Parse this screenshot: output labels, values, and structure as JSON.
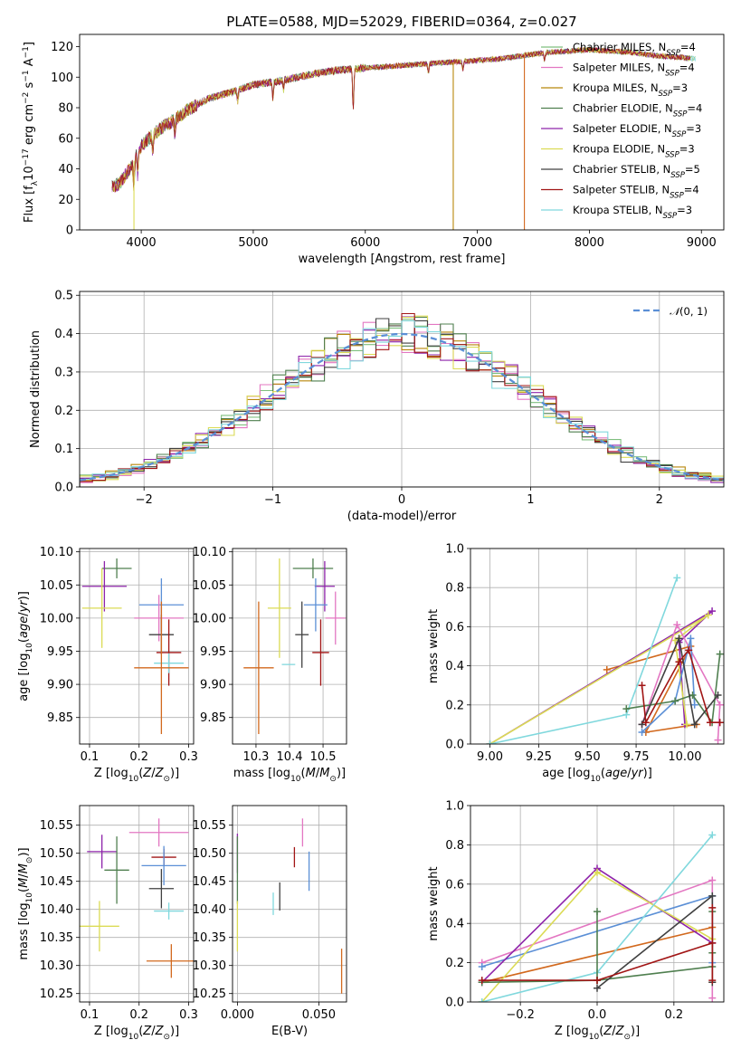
{
  "figure_title": "PLATE=0588, MJD=52029, FIBERID=0364, z=0.027",
  "colors": {
    "Chabrier MILES": "#7fbf7f",
    "Salpeter MILES": "#e377c2",
    "Kroupa MILES": "#b8860b",
    "Chabrier ELODIE": "#4f7f4f",
    "Salpeter ELODIE": "#8e24aa",
    "Kroupa ELODIE": "#dbdb55",
    "Chabrier STELIB": "#404040",
    "Salpeter STELIB": "#a11515",
    "Kroupa STELIB": "#80d8dd",
    "normal_curve": "#5b8fd6"
  },
  "chart_data": [
    {
      "id": "spectrum",
      "type": "line",
      "title": "PLATE=0588, MJD=52029, FIBERID=0364, z=0.027",
      "xlabel": "wavelength [Angstrom, rest frame]",
      "ylabel": "Flux [f_λ 10^-17 erg cm^-2 s^-1 A^-1]",
      "xlim": [
        3450,
        9200
      ],
      "ylim": [
        0,
        128
      ],
      "xticks": [
        4000,
        5000,
        6000,
        7000,
        8000,
        9000
      ],
      "yticks": [
        0,
        20,
        40,
        60,
        80,
        100,
        120
      ],
      "grid": false,
      "legend_position": "top-right",
      "legend": [
        {
          "label": "Chabrier MILES, N",
          "sub": "SSP",
          "value": "=4",
          "color": "#7fbf7f"
        },
        {
          "label": "Salpeter MILES, N",
          "sub": "SSP",
          "value": "=4",
          "color": "#e377c2"
        },
        {
          "label": "Kroupa MILES, N",
          "sub": "SSP",
          "value": "=3",
          "color": "#b8860b"
        },
        {
          "label": "Chabrier ELODIE, N",
          "sub": "SSP",
          "value": "=4",
          "color": "#4f7f4f"
        },
        {
          "label": "Salpeter ELODIE, N",
          "sub": "SSP",
          "value": "=3",
          "color": "#8e24aa"
        },
        {
          "label": "Kroupa ELODIE, N",
          "sub": "SSP",
          "value": "=3",
          "color": "#dbdb55"
        },
        {
          "label": "Chabrier STELIB, N",
          "sub": "SSP",
          "value": "=5",
          "color": "#404040"
        },
        {
          "label": "Salpeter STELIB, N",
          "sub": "SSP",
          "value": "=4",
          "color": "#a11515"
        },
        {
          "label": "Kroupa STELIB, N",
          "sub": "SSP",
          "value": "=3",
          "color": "#80d8dd"
        }
      ],
      "continuum": [
        [
          3740,
          28
        ],
        [
          3800,
          30
        ],
        [
          3900,
          40
        ],
        [
          4000,
          55
        ],
        [
          4100,
          62
        ],
        [
          4200,
          68
        ],
        [
          4300,
          72
        ],
        [
          4400,
          78
        ],
        [
          4500,
          82
        ],
        [
          4600,
          86
        ],
        [
          4800,
          90
        ],
        [
          5000,
          95
        ],
        [
          5200,
          97
        ],
        [
          5400,
          100
        ],
        [
          5600,
          103
        ],
        [
          5800,
          105
        ],
        [
          6000,
          106
        ],
        [
          6200,
          107
        ],
        [
          6400,
          108
        ],
        [
          6600,
          109
        ],
        [
          6800,
          110
        ],
        [
          7000,
          111
        ],
        [
          7200,
          112
        ],
        [
          7400,
          114
        ],
        [
          7600,
          116
        ],
        [
          7800,
          117
        ],
        [
          8000,
          118
        ],
        [
          8200,
          117
        ],
        [
          8400,
          116
        ],
        [
          8600,
          114
        ],
        [
          8800,
          113
        ],
        [
          8950,
          112
        ]
      ],
      "drops": [
        {
          "x": 3935,
          "y": 0,
          "color": "#dbdb55"
        },
        {
          "x": 6785,
          "y": 0,
          "color": "#b8860b"
        },
        {
          "x": 7420,
          "y": 0,
          "color": "#d2691e"
        }
      ]
    },
    {
      "id": "residual_hist",
      "type": "histogram",
      "xlabel": "(data-model)/error",
      "ylabel": "Normed distribution",
      "xlim": [
        -2.5,
        2.5
      ],
      "ylim": [
        0,
        0.51
      ],
      "xticks": [
        -2,
        -1,
        0,
        1,
        2
      ],
      "yticks": [
        0.0,
        0.1,
        0.2,
        0.3,
        0.4,
        0.5
      ],
      "grid": true,
      "legend_position": "top-right",
      "legend_label": "N(0, 1)",
      "bin_width": 0.1,
      "bin_start": -2.5
    },
    {
      "id": "age_vs_Z",
      "type": "scatter",
      "xlabel": "Z [log10(Z/Z⊙)]",
      "ylabel": "age  [log10(age/yr)]",
      "xlim": [
        0.08,
        0.31
      ],
      "ylim": [
        9.81,
        10.105
      ],
      "xticks": [
        0.1,
        0.2,
        0.3
      ],
      "yticks": [
        9.85,
        9.9,
        9.95,
        10.0,
        10.05,
        10.1
      ],
      "grid": true,
      "points": [
        {
          "x": 0.155,
          "y": 10.075,
          "xerr": 0.03,
          "yerr": 0.015,
          "c": "#4f7f4f"
        },
        {
          "x": 0.13,
          "y": 10.048,
          "xerr": 0.045,
          "yerr": 0.038,
          "c": "#8e24aa"
        },
        {
          "x": 0.125,
          "y": 10.015,
          "xerr": 0.04,
          "yerr": 0.06,
          "c": "#dbdb55"
        },
        {
          "x": 0.245,
          "y": 10.02,
          "xerr": 0.045,
          "yerr": 0.04,
          "c": "#5b8fd6"
        },
        {
          "x": 0.24,
          "y": 10.0,
          "xerr": 0.05,
          "yerr": 0.035,
          "c": "#e377c2"
        },
        {
          "x": 0.245,
          "y": 9.975,
          "xerr": 0.025,
          "yerr": 0.03,
          "c": "#404040"
        },
        {
          "x": 0.26,
          "y": 9.948,
          "xerr": 0.025,
          "yerr": 0.05,
          "c": "#a11515"
        },
        {
          "x": 0.26,
          "y": 9.932,
          "xerr": 0.03,
          "yerr": 0.015,
          "c": "#80d8dd"
        },
        {
          "x": 0.245,
          "y": 9.925,
          "xerr": 0.055,
          "yerr": 0.1,
          "c": "#d2691e"
        }
      ]
    },
    {
      "id": "age_vs_mass",
      "type": "scatter",
      "xlabel": "mass [log10(M/M⊙)]",
      "ylabel": "",
      "xlim": [
        10.23,
        10.57
      ],
      "ylim": [
        9.81,
        10.105
      ],
      "xticks": [
        10.3,
        10.4,
        10.5
      ],
      "yticks": [
        9.85,
        9.9,
        9.95,
        10.0,
        10.05,
        10.1
      ],
      "grid": true,
      "points": [
        {
          "x": 10.47,
          "y": 10.075,
          "xerr": 0.06,
          "yerr": 0.015,
          "c": "#4f7f4f"
        },
        {
          "x": 10.505,
          "y": 10.048,
          "xerr": 0.03,
          "yerr": 0.038,
          "c": "#8e24aa"
        },
        {
          "x": 10.37,
          "y": 10.015,
          "xerr": 0.035,
          "yerr": 0.075,
          "c": "#dbdb55"
        },
        {
          "x": 10.478,
          "y": 10.02,
          "xerr": 0.035,
          "yerr": 0.04,
          "c": "#5b8fd6"
        },
        {
          "x": 10.537,
          "y": 10.0,
          "xerr": 0.03,
          "yerr": 0.04,
          "c": "#e377c2"
        },
        {
          "x": 10.437,
          "y": 9.975,
          "xerr": 0.02,
          "yerr": 0.05,
          "c": "#404040"
        },
        {
          "x": 10.493,
          "y": 9.948,
          "xerr": 0.025,
          "yerr": 0.05,
          "c": "#a11515"
        },
        {
          "x": 10.397,
          "y": 9.93,
          "xerr": 0.02,
          "yerr": 0.0,
          "c": "#80d8dd"
        },
        {
          "x": 10.308,
          "y": 9.925,
          "xerr": 0.045,
          "yerr": 0.1,
          "c": "#d2691e"
        }
      ]
    },
    {
      "id": "weight_vs_age",
      "type": "line",
      "xlabel": "age  [log10(age/yr)]",
      "ylabel": "mass weight",
      "xlim": [
        8.9,
        10.2
      ],
      "ylim": [
        0,
        1.0
      ],
      "xticks": [
        9.0,
        9.25,
        9.5,
        9.75,
        10.0
      ],
      "yticks": [
        0.0,
        0.2,
        0.4,
        0.6,
        0.8,
        1.0
      ],
      "grid": true,
      "series": [
        {
          "c": "#d2691e",
          "pts": [
            [
              9.6,
              0.38
            ],
            [
              10.03,
              0.5
            ],
            [
              9.8,
              0.06
            ],
            [
              10.06,
              0.1
            ]
          ]
        },
        {
          "c": "#8e24aa",
          "pts": [
            [
              9.0,
              0.0
            ],
            [
              10.14,
              0.68
            ],
            [
              9.97,
              0.52
            ],
            [
              10.0,
              0.1
            ]
          ]
        },
        {
          "c": "#dbdb55",
          "pts": [
            [
              9.0,
              0.0
            ],
            [
              10.12,
              0.66
            ],
            [
              9.95,
              0.53
            ],
            [
              10.01,
              0.1
            ]
          ]
        },
        {
          "c": "#e377c2",
          "pts": [
            [
              9.78,
              0.1
            ],
            [
              9.96,
              0.61
            ],
            [
              10.18,
              0.2
            ],
            [
              10.17,
              0.02
            ]
          ]
        },
        {
          "c": "#5b8fd6",
          "pts": [
            [
              9.78,
              0.06
            ],
            [
              9.95,
              0.22
            ],
            [
              10.03,
              0.54
            ],
            [
              10.05,
              0.2
            ]
          ]
        },
        {
          "c": "#80d8dd",
          "pts": [
            [
              9.0,
              0.0
            ],
            [
              9.7,
              0.15
            ],
            [
              9.96,
              0.85
            ]
          ]
        },
        {
          "c": "#4f7f4f",
          "pts": [
            [
              9.7,
              0.18
            ],
            [
              9.95,
              0.22
            ],
            [
              10.04,
              0.25
            ],
            [
              10.14,
              0.11
            ],
            [
              10.18,
              0.46
            ]
          ]
        },
        {
          "c": "#404040",
          "pts": [
            [
              9.78,
              0.1
            ],
            [
              9.97,
              0.54
            ],
            [
              10.05,
              0.1
            ],
            [
              10.17,
              0.25
            ]
          ]
        },
        {
          "c": "#a11515",
          "pts": [
            [
              9.78,
              0.3
            ],
            [
              9.8,
              0.11
            ],
            [
              9.97,
              0.42
            ],
            [
              10.02,
              0.48
            ],
            [
              10.13,
              0.11
            ],
            [
              10.18,
              0.11
            ]
          ]
        }
      ]
    },
    {
      "id": "mass_vs_Z",
      "type": "scatter",
      "xlabel": "Z [log10(Z/Z⊙)]",
      "ylabel": "mass [log10(M/M⊙)]",
      "xlim": [
        0.08,
        0.31
      ],
      "ylim": [
        10.235,
        10.585
      ],
      "xticks": [
        0.1,
        0.2,
        0.3
      ],
      "yticks": [
        10.25,
        10.3,
        10.35,
        10.4,
        10.45,
        10.5,
        10.55
      ],
      "grid": true,
      "points": [
        {
          "x": 0.24,
          "y": 10.537,
          "xerr": 0.06,
          "yerr": 0.025,
          "c": "#e377c2"
        },
        {
          "x": 0.125,
          "y": 10.503,
          "xerr": 0.03,
          "yerr": 0.03,
          "c": "#8e24aa"
        },
        {
          "x": 0.25,
          "y": 10.493,
          "xerr": 0.025,
          "yerr": 0.015,
          "c": "#a11515"
        },
        {
          "x": 0.25,
          "y": 10.478,
          "xerr": 0.045,
          "yerr": 0.035,
          "c": "#5b8fd6"
        },
        {
          "x": 0.155,
          "y": 10.47,
          "xerr": 0.025,
          "yerr": 0.06,
          "c": "#4f7f4f"
        },
        {
          "x": 0.245,
          "y": 10.437,
          "xerr": 0.025,
          "yerr": 0.035,
          "c": "#404040"
        },
        {
          "x": 0.26,
          "y": 10.397,
          "xerr": 0.03,
          "yerr": 0.015,
          "c": "#80d8dd"
        },
        {
          "x": 0.12,
          "y": 10.37,
          "xerr": 0.04,
          "yerr": 0.045,
          "c": "#dbdb55"
        },
        {
          "x": 0.265,
          "y": 10.308,
          "xerr": 0.05,
          "yerr": 0.03,
          "c": "#d2691e"
        }
      ]
    },
    {
      "id": "mass_vs_ebv",
      "type": "scatter",
      "xlabel": "E(B-V)",
      "ylabel": "",
      "xlim": [
        -0.003,
        0.067
      ],
      "ylim": [
        10.235,
        10.585
      ],
      "xticks": [
        0.0,
        0.05
      ],
      "xticklabels": [
        "0.000",
        "0.050"
      ],
      "yticks": [
        10.25,
        10.3,
        10.35,
        10.4,
        10.45,
        10.5,
        10.55
      ],
      "grid": true,
      "points": [
        {
          "x": 0.0,
          "y": 10.5,
          "xerr": 0,
          "yerr": 0.035,
          "c": "#8e24aa"
        },
        {
          "x": 0.0,
          "y": 10.47,
          "xerr": 0,
          "yerr": 0.06,
          "c": "#4f7f4f"
        },
        {
          "x": 0.0,
          "y": 10.37,
          "xerr": 0,
          "yerr": 0.045,
          "c": "#dbdb55"
        },
        {
          "x": 0.022,
          "y": 10.41,
          "xerr": 0,
          "yerr": 0.02,
          "c": "#80d8dd"
        },
        {
          "x": 0.026,
          "y": 10.423,
          "xerr": 0,
          "yerr": 0.025,
          "c": "#404040"
        },
        {
          "x": 0.035,
          "y": 10.493,
          "xerr": 0,
          "yerr": 0.018,
          "c": "#a11515"
        },
        {
          "x": 0.04,
          "y": 10.537,
          "xerr": 0,
          "yerr": 0.025,
          "c": "#e377c2"
        },
        {
          "x": 0.044,
          "y": 10.468,
          "xerr": 0,
          "yerr": 0.035,
          "c": "#5b8fd6"
        },
        {
          "x": 0.064,
          "y": 10.29,
          "xerr": 0,
          "yerr": 0.04,
          "c": "#d2691e"
        }
      ]
    },
    {
      "id": "weight_vs_Z",
      "type": "line",
      "xlabel": "Z [log10(Z/Z⊙)]",
      "ylabel": "mass weight",
      "xlim": [
        -0.33,
        0.33
      ],
      "ylim": [
        0,
        1.0
      ],
      "xticks": [
        -0.2,
        0.0,
        0.2
      ],
      "yticks": [
        0.0,
        0.2,
        0.4,
        0.6,
        0.8,
        1.0
      ],
      "grid": true,
      "series": [
        {
          "c": "#e377c2",
          "pts": [
            [
              -0.3,
              0.2
            ],
            [
              0.3,
              0.62
            ],
            [
              0.3,
              0.02
            ]
          ]
        },
        {
          "c": "#5b8fd6",
          "pts": [
            [
              -0.3,
              0.18
            ],
            [
              0.3,
              0.54
            ],
            [
              0.3,
              0.2
            ]
          ]
        },
        {
          "c": "#d2691e",
          "pts": [
            [
              -0.3,
              0.1
            ],
            [
              0.3,
              0.38
            ],
            [
              0.3,
              0.1
            ]
          ]
        },
        {
          "c": "#8e24aa",
          "pts": [
            [
              -0.3,
              0.1
            ],
            [
              0.0,
              0.68
            ],
            [
              0.3,
              0.3
            ]
          ]
        },
        {
          "c": "#dbdb55",
          "pts": [
            [
              -0.3,
              0.0
            ],
            [
              0.0,
              0.66
            ],
            [
              0.3,
              0.32
            ]
          ]
        },
        {
          "c": "#80d8dd",
          "pts": [
            [
              -0.3,
              0.0
            ],
            [
              0.0,
              0.15
            ],
            [
              0.3,
              0.85
            ]
          ]
        },
        {
          "c": "#4f7f4f",
          "pts": [
            [
              -0.3,
              0.1
            ],
            [
              0.0,
              0.11
            ],
            [
              0.0,
              0.46
            ],
            [
              0.0,
              0.11
            ],
            [
              0.3,
              0.18
            ],
            [
              0.3,
              0.25
            ],
            [
              0.3,
              0.46
            ]
          ]
        },
        {
          "c": "#404040",
          "pts": [
            [
              0.0,
              0.07
            ],
            [
              0.3,
              0.54
            ],
            [
              0.3,
              0.1
            ]
          ]
        },
        {
          "c": "#a11515",
          "pts": [
            [
              -0.3,
              0.11
            ],
            [
              0.0,
              0.11
            ],
            [
              0.3,
              0.3
            ],
            [
              0.3,
              0.48
            ],
            [
              0.3,
              0.11
            ]
          ]
        }
      ]
    }
  ]
}
